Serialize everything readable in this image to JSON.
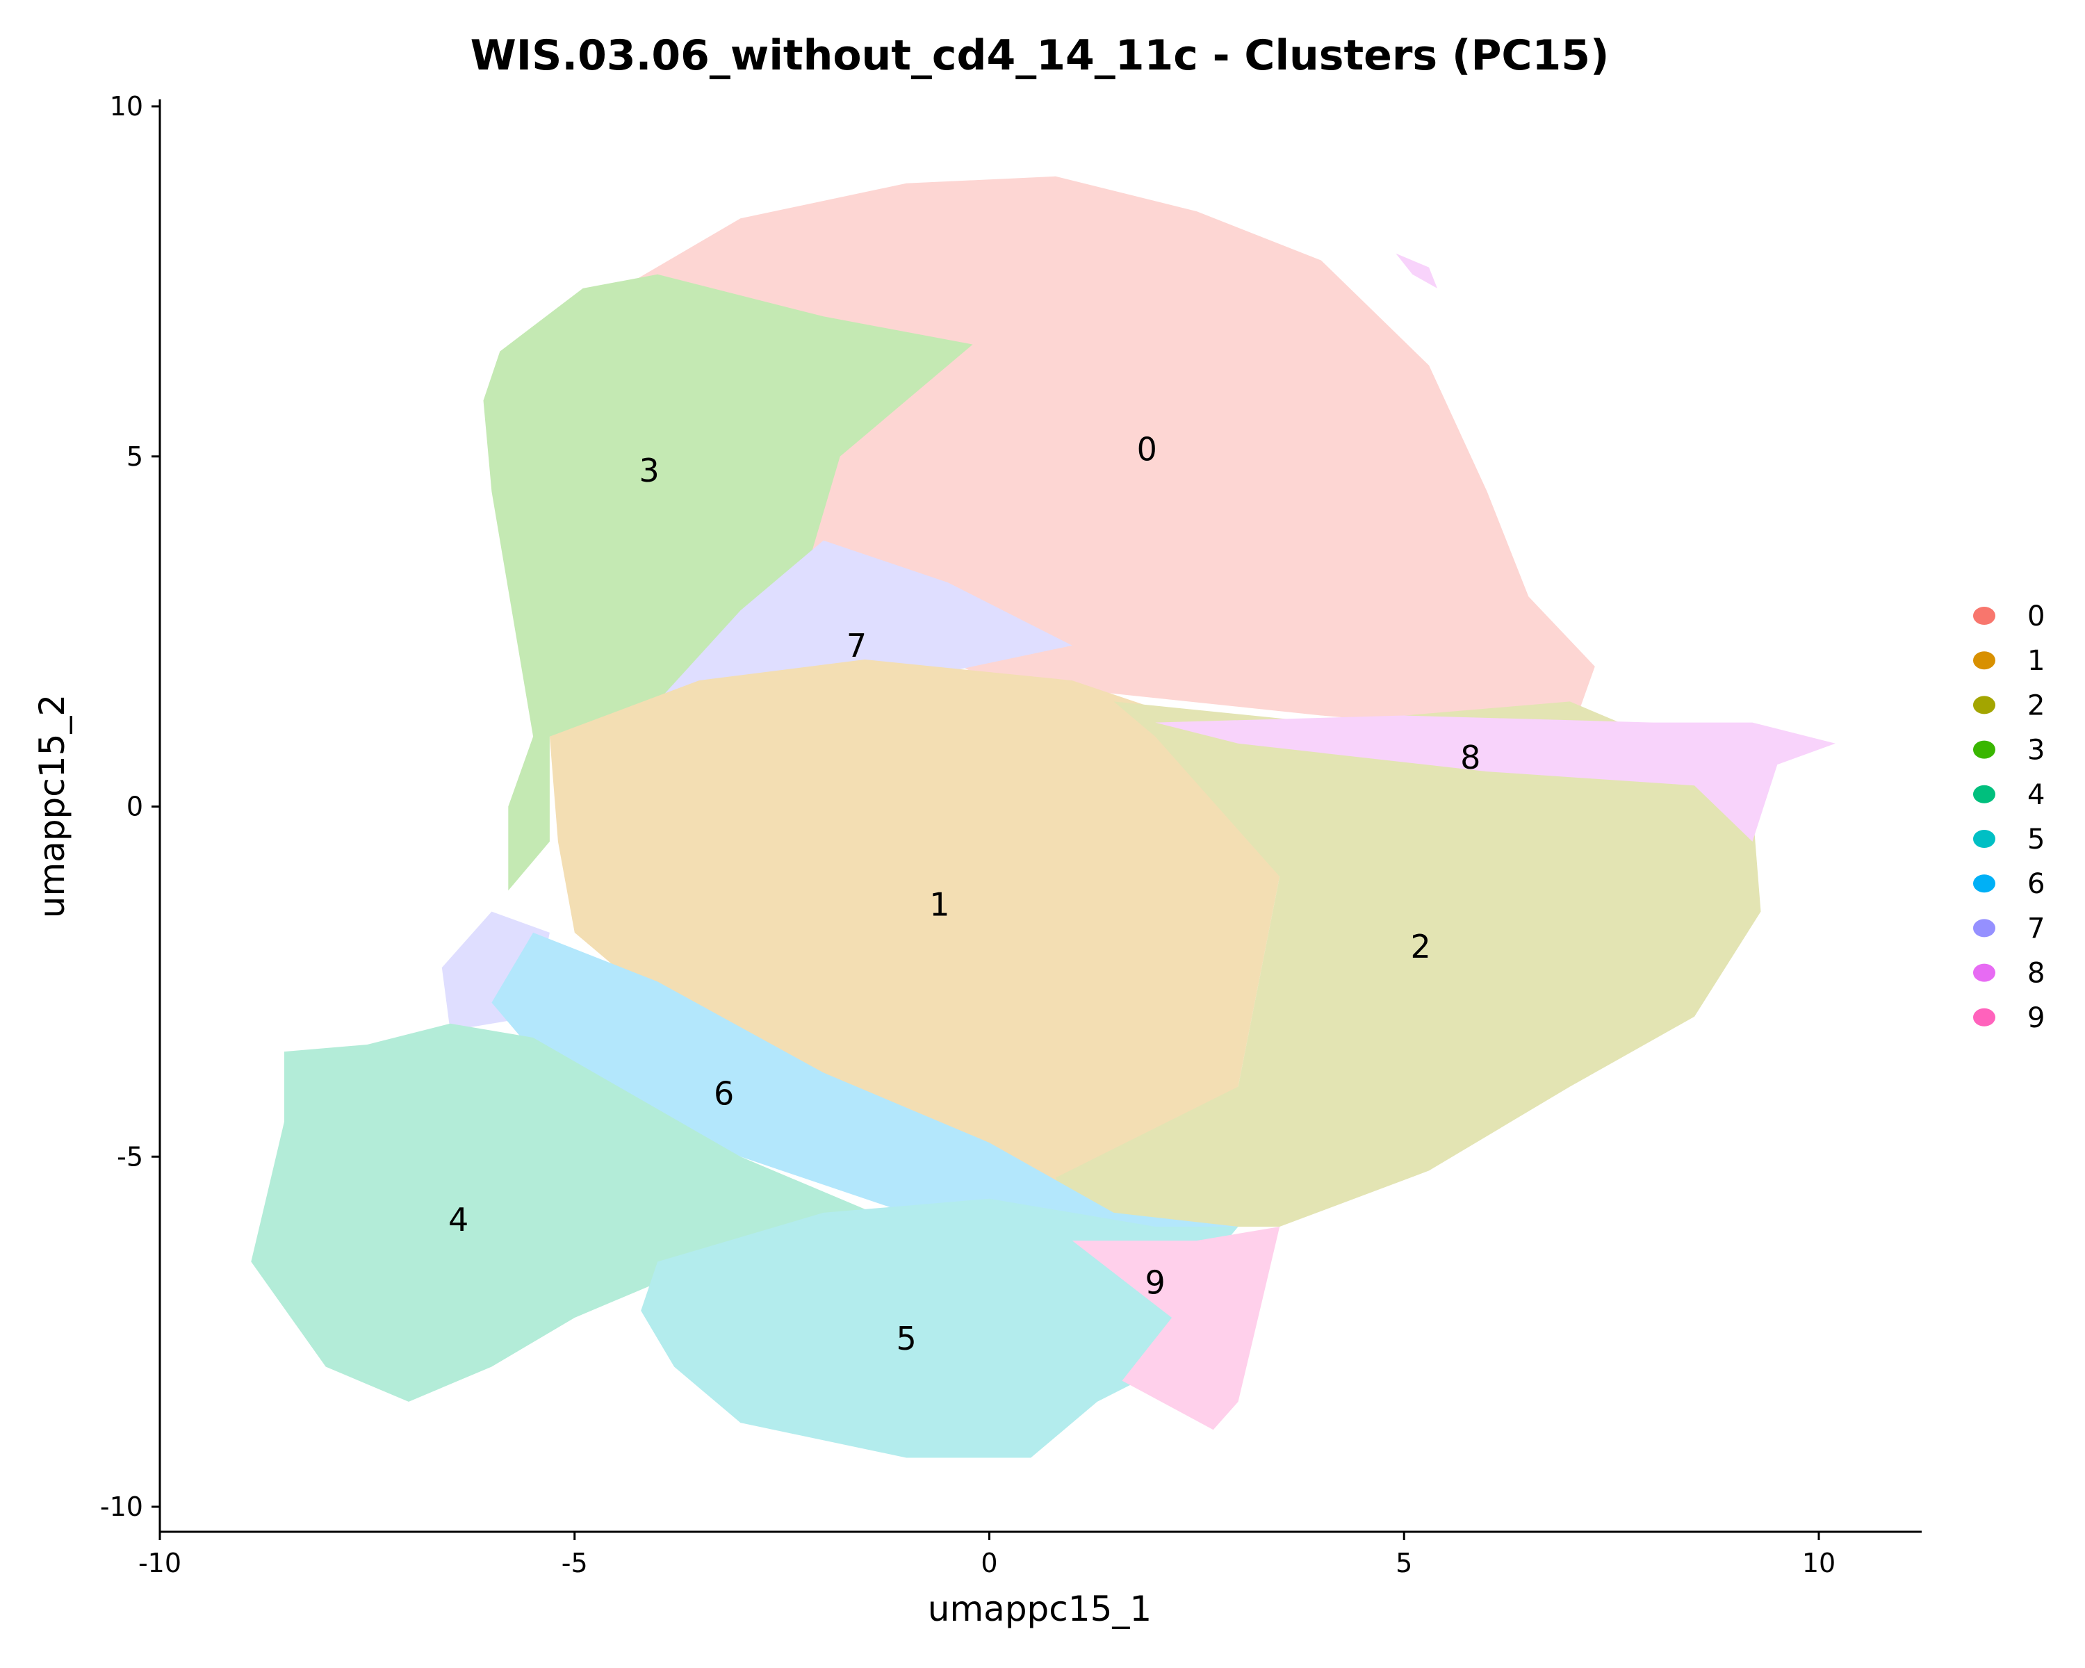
{
  "chart_data": {
    "type": "scatter",
    "title": "WIS.03.06_without_cd4_14_11c - Clusters (PC15)",
    "xlabel": "umappc15_1",
    "ylabel": "umappc15_2",
    "xlim": [
      -10,
      11.2
    ],
    "ylim": [
      -10.4,
      10.1
    ],
    "xticks": [
      -10,
      -5,
      0,
      5,
      10
    ],
    "yticks": [
      -10,
      -5,
      0,
      5,
      10
    ],
    "xtick_labels": [
      "-10",
      "-5",
      "0",
      "5",
      "10"
    ],
    "ytick_labels": [
      "-10",
      "-5",
      "0",
      "5",
      "10"
    ],
    "grid": false,
    "legend_placement": "right",
    "point_alpha": "low (pastel appearance)",
    "clusters": [
      {
        "name": "0",
        "color": "#F8766D",
        "label_x": 1.9,
        "label_y": 5.1
      },
      {
        "name": "1",
        "color": "#D89000",
        "label_x": -0.6,
        "label_y": -1.4
      },
      {
        "name": "2",
        "color": "#A3A500",
        "label_x": 5.2,
        "label_y": -2.0
      },
      {
        "name": "3",
        "color": "#39B600",
        "label_x": -4.1,
        "label_y": 4.8
      },
      {
        "name": "4",
        "color": "#00BF7D",
        "label_x": -6.4,
        "label_y": -5.9
      },
      {
        "name": "5",
        "color": "#00BFC4",
        "label_x": -1.0,
        "label_y": -7.6
      },
      {
        "name": "6",
        "color": "#00B0F6",
        "label_x": -3.2,
        "label_y": -4.1
      },
      {
        "name": "7",
        "color": "#9590FF",
        "label_x": -1.6,
        "label_y": 2.3
      },
      {
        "name": "8",
        "color": "#E76BF3",
        "label_x": 5.8,
        "label_y": 0.7
      },
      {
        "name": "9",
        "color": "#FF62BC",
        "label_x": 2.0,
        "label_y": -6.8
      }
    ]
  }
}
